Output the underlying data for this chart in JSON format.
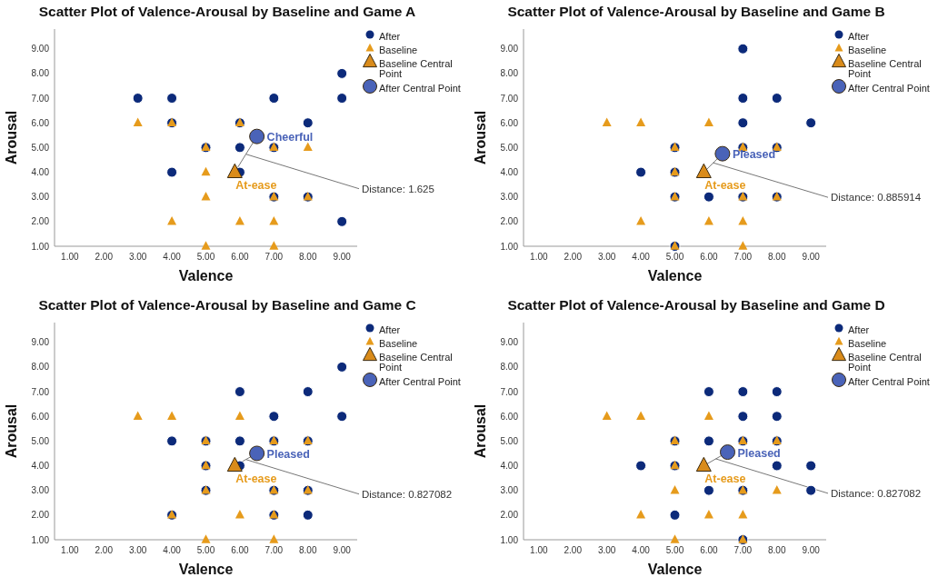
{
  "chart_data": [
    {
      "type": "scatter",
      "title": "Scatter Plot of Valence-Arousal by Baseline and Game A",
      "xlabel": "Valence",
      "ylabel": "Arousal",
      "xlim": [
        0.55,
        9.45
      ],
      "ylim": [
        1,
        9.8
      ],
      "xticks": [
        {
          "value": 1,
          "label": "1.00"
        },
        {
          "value": 2,
          "label": "2.00"
        },
        {
          "value": 3,
          "label": "3.00"
        },
        {
          "value": 4,
          "label": "4.00"
        },
        {
          "value": 5,
          "label": "5.00"
        },
        {
          "value": 6,
          "label": "6.00"
        },
        {
          "value": 7,
          "label": "7.00"
        },
        {
          "value": 8,
          "label": "8.00"
        },
        {
          "value": 9,
          "label": "9.00"
        }
      ],
      "yticks": [
        {
          "value": 1,
          "label": "1.00"
        },
        {
          "value": 2,
          "label": "2.00"
        },
        {
          "value": 3,
          "label": "3.00"
        },
        {
          "value": 4,
          "label": "4.00"
        },
        {
          "value": 5,
          "label": "5.00"
        },
        {
          "value": 6,
          "label": "6.00"
        },
        {
          "value": 7,
          "label": "7.00"
        },
        {
          "value": 8,
          "label": "8.00"
        },
        {
          "value": 9,
          "label": "9.00"
        }
      ],
      "grid": false,
      "legend": "top right",
      "series": [
        {
          "name": "After",
          "color": "#0c2a7a",
          "marker": "circle",
          "x": [
            3,
            4,
            4,
            6,
            8,
            7,
            9,
            9,
            5,
            6,
            7,
            4,
            6,
            7,
            8,
            9
          ],
          "values": [
            7,
            7,
            6,
            6,
            6,
            7,
            8,
            7,
            5,
            5,
            5,
            4,
            4,
            3,
            3,
            2
          ]
        },
        {
          "name": "Baseline",
          "color": "#e69b1c",
          "marker": "triangle",
          "x": [
            3,
            4,
            6,
            5,
            7,
            8,
            5,
            5,
            7,
            8,
            4,
            6,
            7,
            5,
            7
          ],
          "values": [
            6,
            6,
            6,
            5,
            5,
            5,
            4,
            3,
            3,
            3,
            2,
            2,
            2,
            1,
            1
          ]
        },
        {
          "name": "Baseline Central Point",
          "color": "#d98b1a",
          "marker": "triangle",
          "x": [
            5.85
          ],
          "values": [
            4.0
          ]
        },
        {
          "name": "After Central Point",
          "color": "#4a63b8",
          "marker": "circle",
          "x": [
            6.5
          ],
          "values": [
            5.45
          ]
        }
      ],
      "annotations": [
        {
          "text": "Cheerful",
          "x": 6.5,
          "y": 5.45
        },
        {
          "text": "At-ease",
          "x": 5.85,
          "y": 4.0
        },
        {
          "text": "Distance: 1.625",
          "x": 6.18,
          "y": 4.73
        }
      ]
    },
    {
      "type": "scatter",
      "title": "Scatter Plot of Valence-Arousal by Baseline and Game B",
      "xlabel": "Valence",
      "ylabel": "Arousal",
      "xlim": [
        0.55,
        9.45
      ],
      "ylim": [
        1,
        9.8
      ],
      "xticks": [
        {
          "value": 1,
          "label": "1.00"
        },
        {
          "value": 2,
          "label": "2.00"
        },
        {
          "value": 3,
          "label": "3.00"
        },
        {
          "value": 4,
          "label": "4.00"
        },
        {
          "value": 5,
          "label": "5.00"
        },
        {
          "value": 6,
          "label": "6.00"
        },
        {
          "value": 7,
          "label": "7.00"
        },
        {
          "value": 8,
          "label": "8.00"
        },
        {
          "value": 9,
          "label": "9.00"
        }
      ],
      "yticks": [
        {
          "value": 1,
          "label": "1.00"
        },
        {
          "value": 2,
          "label": "2.00"
        },
        {
          "value": 3,
          "label": "3.00"
        },
        {
          "value": 4,
          "label": "4.00"
        },
        {
          "value": 5,
          "label": "5.00"
        },
        {
          "value": 6,
          "label": "6.00"
        },
        {
          "value": 7,
          "label": "7.00"
        },
        {
          "value": 8,
          "label": "8.00"
        },
        {
          "value": 9,
          "label": "9.00"
        }
      ],
      "grid": false,
      "legend": "top right",
      "series": [
        {
          "name": "After",
          "color": "#0c2a7a",
          "marker": "circle",
          "x": [
            7,
            7,
            8,
            7,
            9,
            5,
            7,
            8,
            4,
            5,
            5,
            6,
            7,
            8,
            5
          ],
          "values": [
            9,
            7,
            7,
            6,
            6,
            5,
            5,
            5,
            4,
            4,
            3,
            3,
            3,
            3,
            1
          ]
        },
        {
          "name": "Baseline",
          "color": "#e69b1c",
          "marker": "triangle",
          "x": [
            3,
            4,
            6,
            5,
            7,
            8,
            5,
            5,
            7,
            8,
            4,
            6,
            7,
            5,
            7
          ],
          "values": [
            6,
            6,
            6,
            5,
            5,
            5,
            4,
            3,
            3,
            3,
            2,
            2,
            2,
            1,
            1
          ]
        },
        {
          "name": "Baseline Central Point",
          "color": "#d98b1a",
          "marker": "triangle",
          "x": [
            5.85
          ],
          "values": [
            4.0
          ]
        },
        {
          "name": "After Central Point",
          "color": "#4a63b8",
          "marker": "circle",
          "x": [
            6.4
          ],
          "values": [
            4.75
          ]
        }
      ],
      "annotations": [
        {
          "text": "Pleased",
          "x": 6.4,
          "y": 4.75
        },
        {
          "text": "At-ease",
          "x": 5.85,
          "y": 4.0
        },
        {
          "text": "Distance: 0.885914",
          "x": 6.13,
          "y": 4.38
        }
      ]
    },
    {
      "type": "scatter",
      "title": "Scatter Plot of Valence-Arousal by Baseline and Game C",
      "xlabel": "Valence",
      "ylabel": "Arousal",
      "xlim": [
        0.55,
        9.45
      ],
      "ylim": [
        1,
        9.8
      ],
      "xticks": [
        {
          "value": 1,
          "label": "1.00"
        },
        {
          "value": 2,
          "label": "2.00"
        },
        {
          "value": 3,
          "label": "3.00"
        },
        {
          "value": 4,
          "label": "4.00"
        },
        {
          "value": 5,
          "label": "5.00"
        },
        {
          "value": 6,
          "label": "6.00"
        },
        {
          "value": 7,
          "label": "7.00"
        },
        {
          "value": 8,
          "label": "8.00"
        },
        {
          "value": 9,
          "label": "9.00"
        }
      ],
      "yticks": [
        {
          "value": 1,
          "label": "1.00"
        },
        {
          "value": 2,
          "label": "2.00"
        },
        {
          "value": 3,
          "label": "3.00"
        },
        {
          "value": 4,
          "label": "4.00"
        },
        {
          "value": 5,
          "label": "5.00"
        },
        {
          "value": 6,
          "label": "6.00"
        },
        {
          "value": 7,
          "label": "7.00"
        },
        {
          "value": 8,
          "label": "8.00"
        },
        {
          "value": 9,
          "label": "9.00"
        }
      ],
      "grid": false,
      "legend": "top right",
      "series": [
        {
          "name": "After",
          "color": "#0c2a7a",
          "marker": "circle",
          "x": [
            9,
            6,
            8,
            7,
            9,
            4,
            5,
            6,
            7,
            8,
            5,
            6,
            5,
            7,
            8,
            4,
            7,
            8
          ],
          "values": [
            8,
            7,
            7,
            6,
            6,
            5,
            5,
            5,
            5,
            5,
            4,
            4,
            3,
            3,
            3,
            2,
            2,
            2
          ]
        },
        {
          "name": "Baseline",
          "color": "#e69b1c",
          "marker": "triangle",
          "x": [
            3,
            4,
            6,
            5,
            7,
            8,
            5,
            5,
            7,
            8,
            4,
            6,
            7,
            5,
            7
          ],
          "values": [
            6,
            6,
            6,
            5,
            5,
            5,
            4,
            3,
            3,
            3,
            2,
            2,
            2,
            1,
            1
          ]
        },
        {
          "name": "Baseline Central Point",
          "color": "#d98b1a",
          "marker": "triangle",
          "x": [
            5.85
          ],
          "values": [
            4.0
          ]
        },
        {
          "name": "After Central Point",
          "color": "#4a63b8",
          "marker": "circle",
          "x": [
            6.5
          ],
          "values": [
            4.5
          ]
        }
      ],
      "annotations": [
        {
          "text": "Pleased",
          "x": 6.5,
          "y": 4.5
        },
        {
          "text": "At-ease",
          "x": 5.85,
          "y": 4.0
        },
        {
          "text": "Distance: 0.827082",
          "x": 6.18,
          "y": 4.25
        }
      ]
    },
    {
      "type": "scatter",
      "title": "Scatter Plot of Valence-Arousal by Baseline and Game D",
      "xlabel": "Valence",
      "ylabel": "Arousal",
      "xlim": [
        0.55,
        9.45
      ],
      "ylim": [
        1,
        9.8
      ],
      "xticks": [
        {
          "value": 1,
          "label": "1.00"
        },
        {
          "value": 2,
          "label": "2.00"
        },
        {
          "value": 3,
          "label": "3.00"
        },
        {
          "value": 4,
          "label": "4.00"
        },
        {
          "value": 5,
          "label": "5.00"
        },
        {
          "value": 6,
          "label": "6.00"
        },
        {
          "value": 7,
          "label": "7.00"
        },
        {
          "value": 8,
          "label": "8.00"
        },
        {
          "value": 9,
          "label": "9.00"
        }
      ],
      "yticks": [
        {
          "value": 1,
          "label": "1.00"
        },
        {
          "value": 2,
          "label": "2.00"
        },
        {
          "value": 3,
          "label": "3.00"
        },
        {
          "value": 4,
          "label": "4.00"
        },
        {
          "value": 5,
          "label": "5.00"
        },
        {
          "value": 6,
          "label": "6.00"
        },
        {
          "value": 7,
          "label": "7.00"
        },
        {
          "value": 8,
          "label": "8.00"
        },
        {
          "value": 9,
          "label": "9.00"
        }
      ],
      "grid": false,
      "legend": "top right",
      "series": [
        {
          "name": "After",
          "color": "#0c2a7a",
          "marker": "circle",
          "x": [
            6,
            7,
            8,
            7,
            8,
            5,
            6,
            7,
            8,
            4,
            5,
            8,
            9,
            6,
            7,
            9,
            5,
            7
          ],
          "values": [
            7,
            7,
            7,
            6,
            6,
            5,
            5,
            5,
            5,
            4,
            4,
            4,
            4,
            3,
            3,
            3,
            2,
            1
          ]
        },
        {
          "name": "Baseline",
          "color": "#e69b1c",
          "marker": "triangle",
          "x": [
            3,
            4,
            6,
            5,
            7,
            8,
            5,
            5,
            7,
            8,
            4,
            6,
            7,
            5,
            7
          ],
          "values": [
            6,
            6,
            6,
            5,
            5,
            5,
            4,
            3,
            3,
            3,
            2,
            2,
            2,
            1,
            1
          ]
        },
        {
          "name": "Baseline Central Point",
          "color": "#d98b1a",
          "marker": "triangle",
          "x": [
            5.85
          ],
          "values": [
            4.0
          ]
        },
        {
          "name": "After Central Point",
          "color": "#4a63b8",
          "marker": "circle",
          "x": [
            6.55
          ],
          "values": [
            4.55
          ]
        }
      ],
      "annotations": [
        {
          "text": "Pleased",
          "x": 6.55,
          "y": 4.55
        },
        {
          "text": "At-ease",
          "x": 5.85,
          "y": 4.0
        },
        {
          "text": "Distance: 0.827082",
          "x": 6.2,
          "y": 4.28
        }
      ]
    }
  ]
}
